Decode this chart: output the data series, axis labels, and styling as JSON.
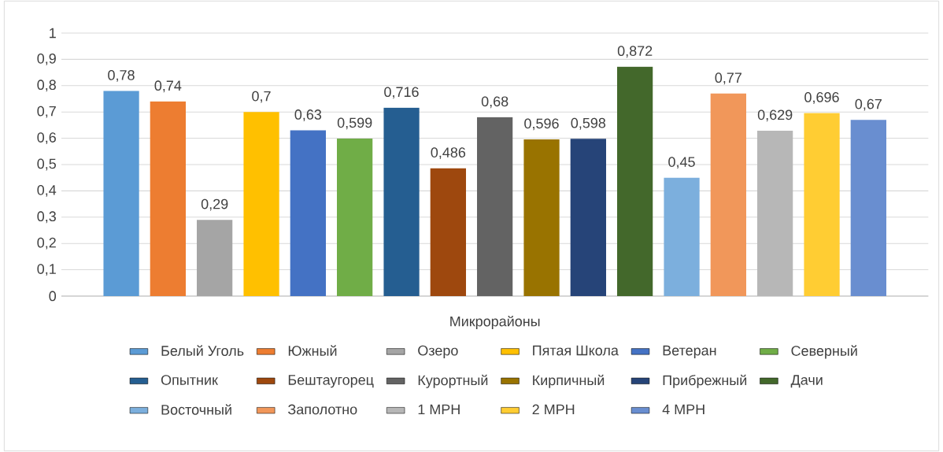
{
  "chart_data": {
    "type": "bar",
    "categories": [
      "Микрорайоны"
    ],
    "ylim": [
      0,
      1
    ],
    "yticks": [
      0,
      {
        "value": 0.1,
        "label": "0,1"
      },
      {
        "value": 0.2,
        "label": "0,2"
      },
      {
        "value": 0.3,
        "label": "0,3"
      },
      {
        "value": 0.4,
        "label": "0,4"
      },
      {
        "value": 0.5,
        "label": "0,5"
      },
      {
        "value": 0.6,
        "label": "0,6"
      },
      {
        "value": 0.7,
        "label": "0,7"
      },
      {
        "value": 0.8,
        "label": "0,8"
      },
      {
        "value": 0.9,
        "label": "0,9"
      },
      1
    ],
    "grid": "y",
    "legend": "bottom",
    "series": [
      {
        "name": "Белый Уголь",
        "color": "#5b9bd5",
        "values": [
          0.78
        ],
        "value_labels": [
          "0,78"
        ]
      },
      {
        "name": "Южный",
        "color": "#ed7d31",
        "values": [
          0.74
        ],
        "value_labels": [
          "0,74"
        ]
      },
      {
        "name": "Озеро",
        "color": "#a5a5a5",
        "values": [
          0.29
        ],
        "value_labels": [
          "0,29"
        ]
      },
      {
        "name": "Пятая Школа",
        "color": "#ffc000",
        "values": [
          0.7
        ],
        "value_labels": [
          "0,7"
        ]
      },
      {
        "name": "Ветеран",
        "color": "#4472c4",
        "values": [
          0.63
        ],
        "value_labels": [
          "0,63"
        ]
      },
      {
        "name": "Северный",
        "color": "#70ad47",
        "values": [
          0.599
        ],
        "value_labels": [
          "0,599"
        ]
      },
      {
        "name": "Опытник",
        "color": "#255e91",
        "values": [
          0.716
        ],
        "value_labels": [
          "0,716"
        ]
      },
      {
        "name": "Бештаугорец",
        "color": "#9e480e",
        "values": [
          0.486
        ],
        "value_labels": [
          "0,486"
        ]
      },
      {
        "name": "Курортный",
        "color": "#636363",
        "values": [
          0.68
        ],
        "value_labels": [
          "0,68"
        ]
      },
      {
        "name": "Кирпичный",
        "color": "#997300",
        "values": [
          0.596
        ],
        "value_labels": [
          "0,596"
        ]
      },
      {
        "name": "Прибрежный",
        "color": "#264478",
        "values": [
          0.598
        ],
        "value_labels": [
          "0,598"
        ]
      },
      {
        "name": "Дачи",
        "color": "#43682b",
        "values": [
          0.872
        ],
        "value_labels": [
          "0,872"
        ]
      },
      {
        "name": "Восточный",
        "color": "#7cafdd",
        "values": [
          0.45
        ],
        "value_labels": [
          "0,45"
        ]
      },
      {
        "name": "Заполотно",
        "color": "#f1975a",
        "values": [
          0.77
        ],
        "value_labels": [
          "0,77"
        ]
      },
      {
        "name": "1 МРН",
        "color": "#b7b7b7",
        "values": [
          0.629
        ],
        "value_labels": [
          "0,629"
        ]
      },
      {
        "name": "2 МРН",
        "color": "#ffcd33",
        "values": [
          0.696
        ],
        "value_labels": [
          "0,696"
        ]
      },
      {
        "name": "4 МРН",
        "color": "#698ed0",
        "values": [
          0.67
        ],
        "value_labels": [
          "0,67"
        ]
      }
    ]
  }
}
